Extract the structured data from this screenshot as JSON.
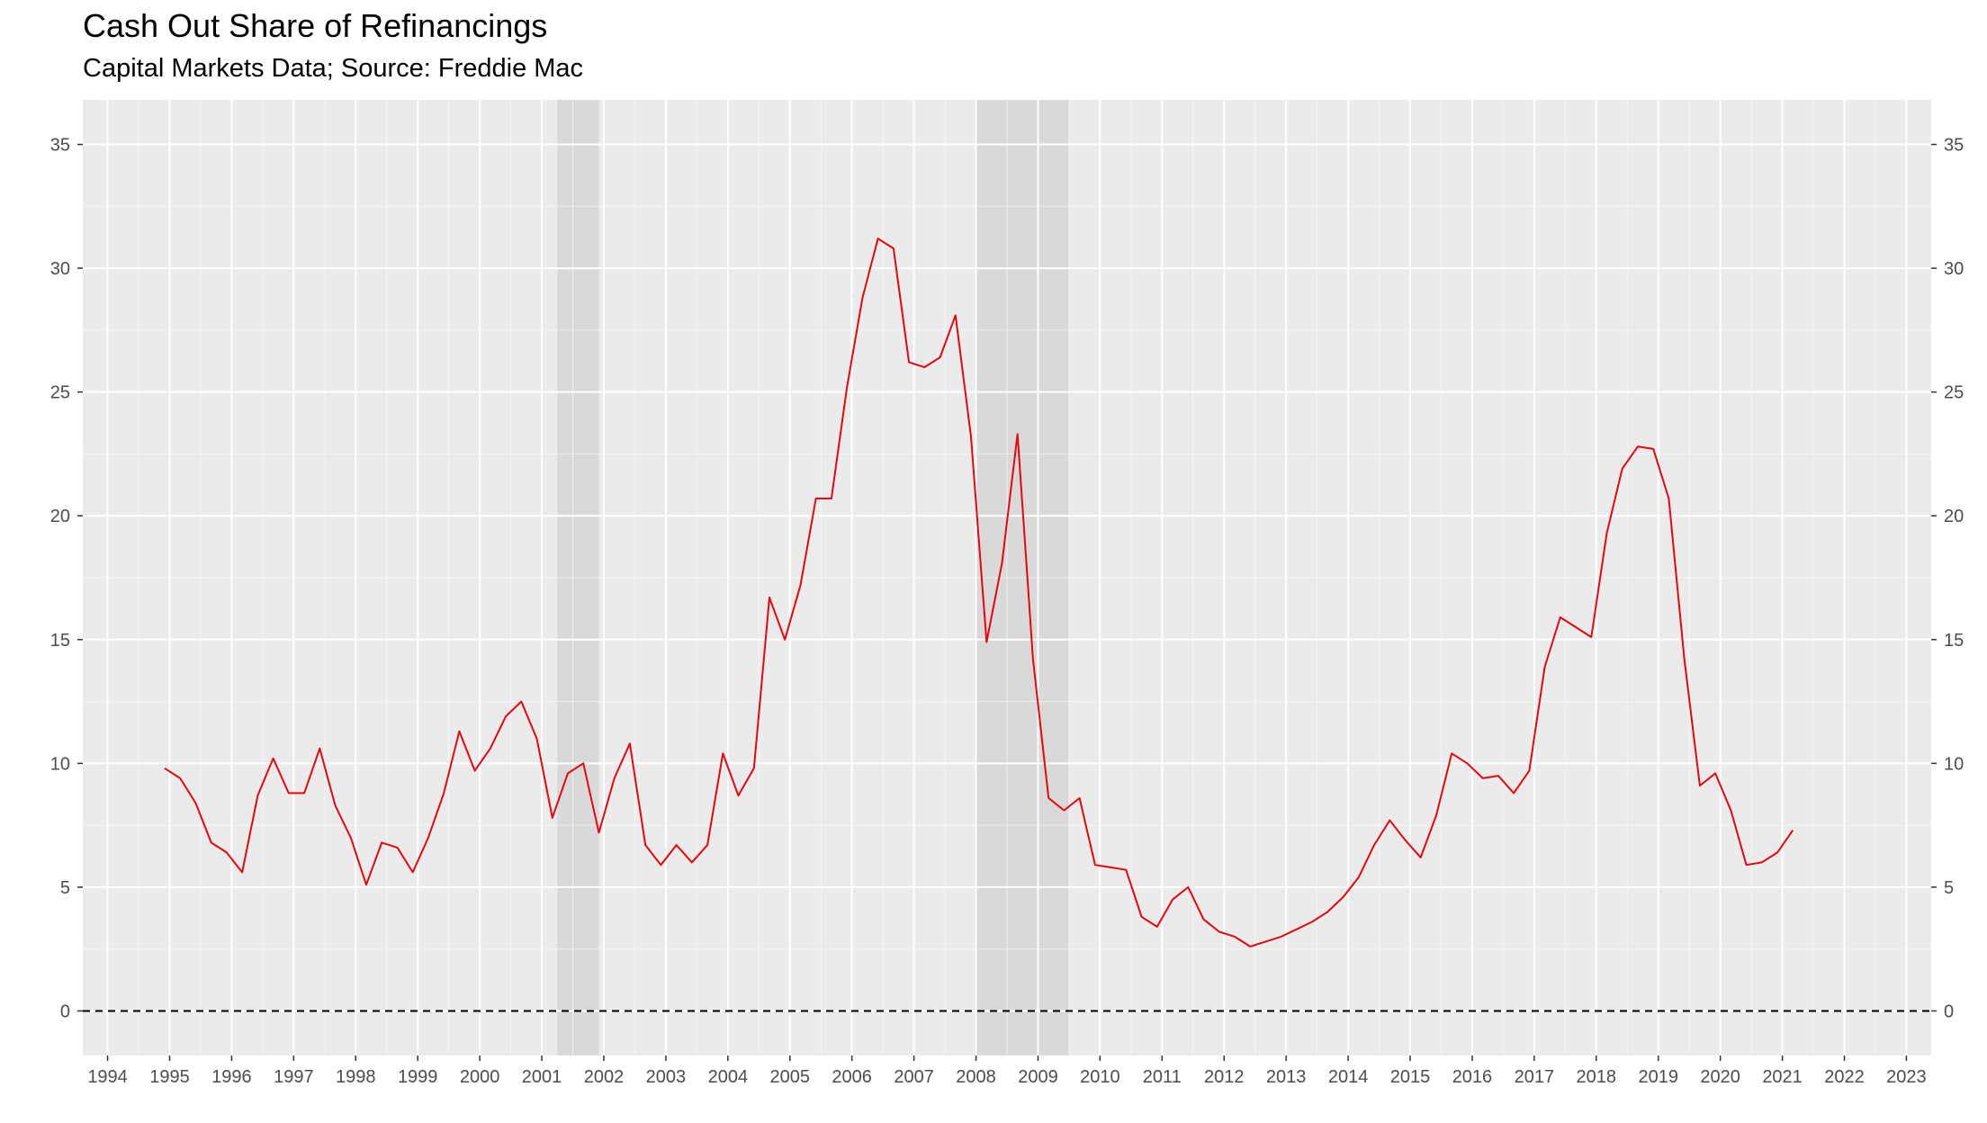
{
  "chart_data": {
    "type": "line",
    "title": "Cash Out Share of Refinancings",
    "subtitle": "Capital Markets Data; Source: Freddie Mac",
    "xlabel": "",
    "ylabel": "",
    "xlim": [
      1993.6,
      2023.4
    ],
    "ylim": [
      -1.8,
      36.8
    ],
    "x_ticks": [
      "1994",
      "1995",
      "1996",
      "1997",
      "1998",
      "1999",
      "2000",
      "2001",
      "2002",
      "2003",
      "2004",
      "2005",
      "2006",
      "2007",
      "2008",
      "2009",
      "2010",
      "2011",
      "2012",
      "2013",
      "2014",
      "2015",
      "2016",
      "2017",
      "2018",
      "2019",
      "2020",
      "2021",
      "2022",
      "2023"
    ],
    "y_ticks": [
      "0",
      "5",
      "10",
      "15",
      "20",
      "25",
      "30",
      "35"
    ],
    "y_axis_both_sides": true,
    "grid": true,
    "reference_line": {
      "y": 0,
      "style": "dashed",
      "color": "#000000"
    },
    "recessions": [
      {
        "start": 2001.25,
        "end": 2001.92
      },
      {
        "start": 2008.0,
        "end": 2009.5
      }
    ],
    "colors": {
      "line": "#e8060f",
      "panel": "#ebebeb",
      "recession": "#d9d9d9",
      "grid_major": "#ffffff",
      "tick_text": "#4d4d4d"
    },
    "series": [
      {
        "x": [
          1994.92,
          1995.17,
          1995.42,
          1995.67,
          1995.92,
          1996.17,
          1996.42,
          1996.67,
          1996.92,
          1997.17,
          1997.42,
          1997.67,
          1997.92,
          1998.17,
          1998.42,
          1998.67,
          1998.92,
          1999.17,
          1999.42,
          1999.67,
          1999.92,
          2000.17,
          2000.42,
          2000.67,
          2000.92,
          2001.17,
          2001.42,
          2001.67,
          2001.92,
          2002.17,
          2002.42,
          2002.67,
          2002.92,
          2003.17,
          2003.42,
          2003.67,
          2003.92,
          2004.17,
          2004.42,
          2004.67,
          2004.92,
          2005.17,
          2005.42,
          2005.67,
          2005.92,
          2006.17,
          2006.42,
          2006.67,
          2006.92,
          2007.17,
          2007.42,
          2007.67,
          2007.92,
          2008.17,
          2008.42,
          2008.67,
          2008.92,
          2009.17,
          2009.42,
          2009.67,
          2009.92,
          2010.17,
          2010.42,
          2010.67,
          2010.92,
          2011.17,
          2011.42,
          2011.67,
          2011.92,
          2012.17,
          2012.42,
          2012.67,
          2012.92,
          2013.17,
          2013.42,
          2013.67,
          2013.92,
          2014.17,
          2014.42,
          2014.67,
          2014.92,
          2015.17,
          2015.42,
          2015.67,
          2015.92,
          2016.17,
          2016.42,
          2016.67,
          2016.92,
          2017.17,
          2017.42,
          2017.67,
          2017.92,
          2018.17,
          2018.42,
          2018.67,
          2018.92,
          2019.17,
          2019.42,
          2019.67,
          2019.92,
          2020.17,
          2020.42,
          2020.67,
          2020.92,
          2021.17
        ],
        "values": [
          9.8,
          9.4,
          8.4,
          6.8,
          6.4,
          5.6,
          8.7,
          10.2,
          8.8,
          8.8,
          10.6,
          8.3,
          7.0,
          5.1,
          6.8,
          6.6,
          5.6,
          7.0,
          8.8,
          11.3,
          9.7,
          10.6,
          11.9,
          12.5,
          11.0,
          7.8,
          9.6,
          10.0,
          7.2,
          9.4,
          10.8,
          6.7,
          5.9,
          6.7,
          6.0,
          6.7,
          10.4,
          8.7,
          9.8,
          16.7,
          15.0,
          17.2,
          20.7,
          20.7,
          25.2,
          28.8,
          31.2,
          30.8,
          26.2,
          26.0,
          26.4,
          28.1,
          23.2,
          14.9,
          18.1,
          23.3,
          14.2,
          8.6,
          8.1,
          8.6,
          5.9,
          5.8,
          5.7,
          3.8,
          3.4,
          4.5,
          5.0,
          3.7,
          3.2,
          3.0,
          2.6,
          2.8,
          3.0,
          3.3,
          3.6,
          4.0,
          4.6,
          5.4,
          6.7,
          7.7,
          6.9,
          6.2,
          7.9,
          10.4,
          10.0,
          9.4,
          9.5,
          8.8,
          9.7,
          13.9,
          15.9,
          15.5,
          15.1,
          19.3,
          21.9,
          22.8,
          22.7,
          20.7,
          14.2,
          9.1,
          9.6,
          8.1,
          5.9,
          6.0,
          6.4,
          7.3
        ]
      }
    ]
  }
}
